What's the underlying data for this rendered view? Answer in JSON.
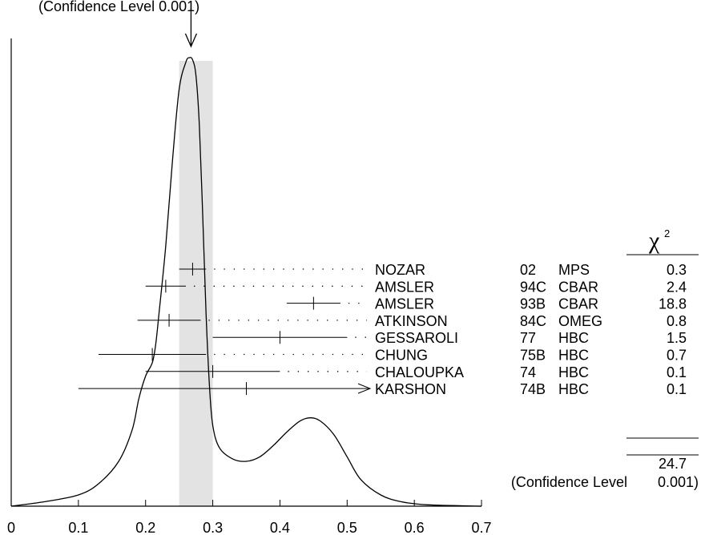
{
  "chart_data": {
    "type": "ideogram",
    "title": "",
    "header_text": "(Confidence Level 0.001)",
    "xlabel": "",
    "ylabel": "",
    "xlim": [
      0,
      0.7
    ],
    "x_ticks": [
      "0",
      "0.1",
      "0.2",
      "0.3",
      "0.4",
      "0.5",
      "0.6",
      "0.7"
    ],
    "x_tick_values": [
      0,
      0.1,
      0.2,
      0.3,
      0.4,
      0.5,
      0.6,
      0.7
    ],
    "average_band": [
      0.25,
      0.3
    ],
    "average_arrow_x": 0.27,
    "chi_symbol": "χ",
    "chi_exponent": "2",
    "measurements": [
      {
        "name": "NOZAR",
        "year": "02",
        "tech": "MPS",
        "value": 0.27,
        "err": 0.02,
        "chi2": "0.3"
      },
      {
        "name": "AMSLER",
        "year": "94C",
        "tech": "CBAR",
        "value": 0.23,
        "err": 0.03,
        "chi2": "2.4"
      },
      {
        "name": "AMSLER",
        "year": "93B",
        "tech": "CBAR",
        "value": 0.45,
        "err": 0.04,
        "chi2": "18.8"
      },
      {
        "name": "ATKINSON",
        "year": "84C",
        "tech": "OMEG",
        "value": 0.235,
        "err": 0.047,
        "chi2": "0.8"
      },
      {
        "name": "GESSAROLI",
        "year": "77",
        "tech": "HBC",
        "value": 0.4,
        "err": 0.1,
        "chi2": "1.5"
      },
      {
        "name": "CHUNG",
        "year": "75B",
        "tech": "HBC",
        "value": 0.21,
        "err": 0.08,
        "chi2": "0.7"
      },
      {
        "name": "CHALOUPKA",
        "year": "74",
        "tech": "HBC",
        "value": 0.3,
        "err": 0.1,
        "chi2": "0.1"
      },
      {
        "name": "KARSHON",
        "year": "74B",
        "tech": "HBC",
        "value": 0.35,
        "err": 0.25,
        "chi2": "0.1",
        "arrow_right": true
      }
    ],
    "chi2_total": "24.7",
    "confidence_level_label": "(Confidence Level",
    "confidence_level_value": "0.001)",
    "ideogram_curve": [
      [
        0.0,
        0.0
      ],
      [
        0.05,
        0.01
      ],
      [
        0.1,
        0.025
      ],
      [
        0.13,
        0.05
      ],
      [
        0.16,
        0.1
      ],
      [
        0.18,
        0.17
      ],
      [
        0.19,
        0.24
      ],
      [
        0.2,
        0.29
      ],
      [
        0.21,
        0.32
      ],
      [
        0.215,
        0.36
      ],
      [
        0.22,
        0.43
      ],
      [
        0.23,
        0.58
      ],
      [
        0.24,
        0.77
      ],
      [
        0.25,
        0.93
      ],
      [
        0.26,
        0.99
      ],
      [
        0.265,
        1.0
      ],
      [
        0.27,
        0.995
      ],
      [
        0.275,
        0.96
      ],
      [
        0.28,
        0.85
      ],
      [
        0.285,
        0.65
      ],
      [
        0.29,
        0.43
      ],
      [
        0.295,
        0.27
      ],
      [
        0.3,
        0.18
      ],
      [
        0.31,
        0.13
      ],
      [
        0.33,
        0.105
      ],
      [
        0.35,
        0.1
      ],
      [
        0.37,
        0.11
      ],
      [
        0.39,
        0.135
      ],
      [
        0.41,
        0.165
      ],
      [
        0.43,
        0.19
      ],
      [
        0.445,
        0.197
      ],
      [
        0.46,
        0.19
      ],
      [
        0.48,
        0.16
      ],
      [
        0.5,
        0.11
      ],
      [
        0.52,
        0.06
      ],
      [
        0.55,
        0.025
      ],
      [
        0.58,
        0.01
      ],
      [
        0.62,
        0.003
      ],
      [
        0.7,
        0.0
      ]
    ]
  }
}
